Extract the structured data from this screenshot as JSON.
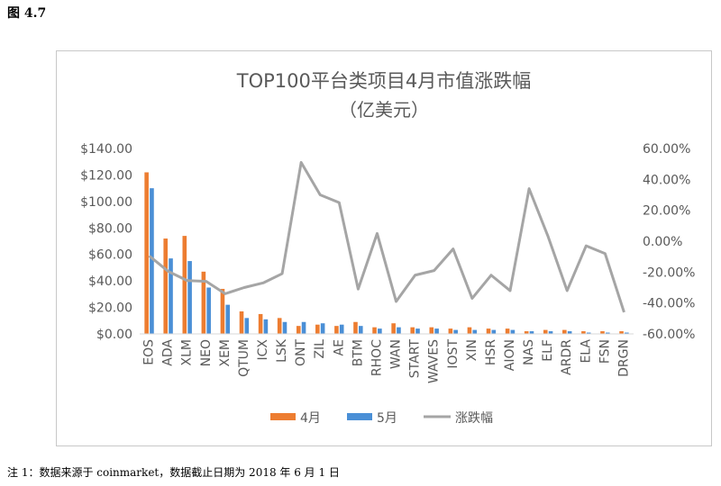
{
  "figure_label": "图 4.7",
  "footnote": "注 1：数据来源于 coinmarket，数据截止日期为 2018 年 6 月 1 日",
  "colors": {
    "april": "#ed7d31",
    "may": "#4a8fd6",
    "change": "#a5a5a5",
    "axis_text": "#595959"
  },
  "chart_data": {
    "type": "bar",
    "title": "TOP100平台类项目4月市值涨跌幅",
    "subtitle": "（亿美元）",
    "categories": [
      "EOS",
      "ADA",
      "XLM",
      "NEO",
      "XEM",
      "QTUM",
      "ICX",
      "LSK",
      "ONT",
      "ZIL",
      "AE",
      "BTM",
      "RHOC",
      "WAN",
      "START",
      "WAVES",
      "IOST",
      "XIN",
      "HSR",
      "AION",
      "NAS",
      "ELF",
      "ARDR",
      "ELA",
      "FSN",
      "DRGN"
    ],
    "series": [
      {
        "name": "4月",
        "type": "bar",
        "axis": "left",
        "values": [
          122,
          72,
          74,
          47,
          34,
          17,
          15,
          12,
          6,
          7,
          6,
          9,
          5,
          8,
          5,
          5,
          4,
          5,
          4,
          4,
          2,
          3,
          3,
          2,
          2,
          2
        ]
      },
      {
        "name": "5月",
        "type": "bar",
        "axis": "left",
        "values": [
          110,
          57,
          55,
          35,
          22,
          12,
          11,
          9,
          9,
          8,
          7,
          6,
          4,
          5,
          4,
          4,
          3,
          3,
          3,
          3,
          2,
          2,
          2,
          1,
          1,
          1
        ]
      },
      {
        "name": "涨跌幅",
        "type": "line",
        "axis": "right",
        "values": [
          -9.5,
          -19.5,
          -25.5,
          -26,
          -34,
          -30,
          -27,
          -21,
          51,
          30,
          25,
          -31,
          5,
          -39,
          -22,
          -19,
          -5,
          -37,
          -22,
          -32,
          34,
          3,
          -32,
          -3,
          -8,
          -46
        ]
      }
    ],
    "left_axis": {
      "min": 0,
      "max": 140,
      "step": 20,
      "tick_labels": [
        "$0.00",
        "$20.00",
        "$40.00",
        "$60.00",
        "$80.00",
        "$100.00",
        "$120.00",
        "$140.00"
      ]
    },
    "right_axis": {
      "min": -60,
      "max": 60,
      "step": 20,
      "tick_labels": [
        "-60.00%",
        "-40.00%",
        "-20.00%",
        "0.00%",
        "20.00%",
        "40.00%",
        "60.00%"
      ]
    },
    "grid": false,
    "legend_position": "bottom"
  }
}
